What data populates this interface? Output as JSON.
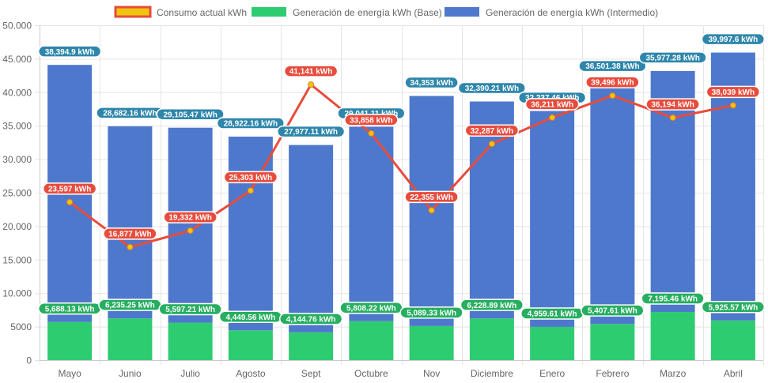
{
  "chart_data": {
    "type": "bar",
    "stacked": true,
    "categories": [
      "Mayo",
      "Junio",
      "Julio",
      "Agosto",
      "Sept",
      "Octubre",
      "Nov",
      "Diciembre",
      "Enero",
      "Febrero",
      "Marzo",
      "Abril"
    ],
    "ylim": [
      0,
      50000
    ],
    "yticks": [
      {
        "value": 0,
        "label": "0"
      },
      {
        "value": 5000,
        "label": "5000"
      },
      {
        "value": 10000,
        "label": "10.000"
      },
      {
        "value": 15000,
        "label": "15.000"
      },
      {
        "value": 20000,
        "label": "20.000"
      },
      {
        "value": 25000,
        "label": "25.000"
      },
      {
        "value": 30000,
        "label": "30.000"
      },
      {
        "value": 35000,
        "label": "35.000"
      },
      {
        "value": 40000,
        "label": "40.000"
      },
      {
        "value": 45000,
        "label": "45.000"
      },
      {
        "value": 50000,
        "label": "50.000"
      }
    ],
    "grid": true,
    "legend_position": "top",
    "series": [
      {
        "name": "Consumo actual kWh",
        "kind": "line",
        "color": "#e74c3c",
        "marker_color": "#f1c40f",
        "values": [
          23597,
          16877,
          19332,
          25303,
          41141,
          33858,
          22355,
          32287,
          36211,
          39496,
          36194,
          38039
        ],
        "labels": [
          "23,597 kWh",
          "16,877 kWh",
          "19,332 kWh",
          "25,303 kWh",
          "41,141 kWh",
          "33,858 kWh",
          "22,355 kWh",
          "32,287 kWh",
          "36,211 kWh",
          "39,496 kWh",
          "36,194 kWh",
          "38,039 kWh"
        ]
      },
      {
        "name": "Generación de energía kWh (Base)",
        "kind": "bar",
        "color": "#2ecc71",
        "label_color": "#27ae60",
        "values": [
          5688.13,
          6235.25,
          5597.21,
          4449.56,
          4144.76,
          5808.22,
          5089.33,
          6228.89,
          4959.61,
          5407.61,
          7195.46,
          5925.57
        ],
        "labels": [
          "5,688.13 kWh",
          "6,235.25 kWh",
          "5,597.21 kWh",
          "4,449.56 kWh",
          "4,144.76 kWh",
          "5,808.22 kWh",
          "5,089.33 kWh",
          "6,228.89 kWh",
          "4,959.61 kWh",
          "5,407.61 kWh",
          "7,195.46 kWh",
          "5,925.57 kWh"
        ]
      },
      {
        "name": "Generación de energía kWh (Intermedio)",
        "kind": "bar",
        "color": "#4e78cc",
        "label_color": "#2e86ab",
        "values": [
          38394.9,
          28682.16,
          29105.47,
          28922.16,
          27977.11,
          29041.11,
          34353,
          32390.21,
          32237.46,
          36501.38,
          35977.28,
          39997.6
        ],
        "labels": [
          "38,394.9 kWh",
          "28,682.16 kWh",
          "29,105.47 kWh",
          "28,922.16 kWh",
          "27,977.11 kWh",
          "29,041.11 kWh",
          "34,353 kWh",
          "32,390.21 kWh",
          "32,237.46 kWh",
          "36,501.38 kWh",
          "35,977.28 kWh",
          "39,997.6 kWh"
        ]
      }
    ]
  }
}
